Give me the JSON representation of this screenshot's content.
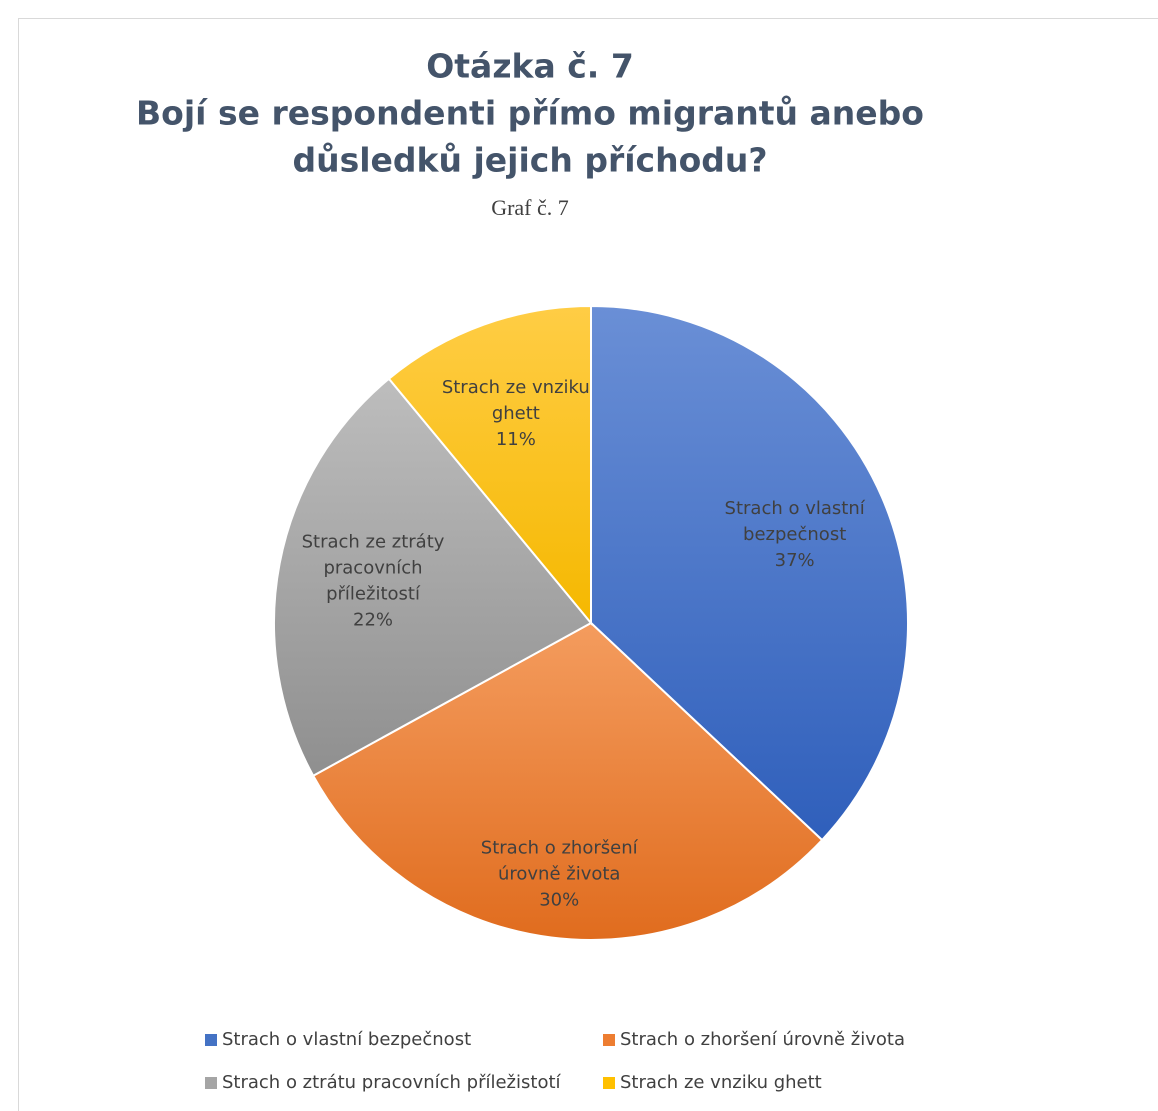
{
  "chart_data": {
    "type": "pie",
    "title": [
      "Otázka č. 7",
      "Bojí se respondenti přímo migrantů anebo",
      "důsledků jejich příchodu?"
    ],
    "subtitle": "Graf č. 7",
    "categories": [
      "Strach o vlastní bezpečnost",
      "Strach o zhoršení úrovně života",
      "Strach o ztrátu pracovních příležistotí",
      "Strach ze vnziku ghett"
    ],
    "data_label_names": [
      "Strach o vlastní bezpečnost",
      "Strach o zhoršení úrovně života",
      "Strach ze ztráty pracovních příležitostí",
      "Strach ze vnziku ghett"
    ],
    "values": [
      37,
      30,
      22,
      11
    ],
    "value_labels": [
      "37%",
      "30%",
      "22%",
      "11%"
    ],
    "colors": [
      "#4472c4",
      "#ed7d31",
      "#a5a5a5",
      "#ffc000"
    ],
    "legend": "bottom"
  }
}
